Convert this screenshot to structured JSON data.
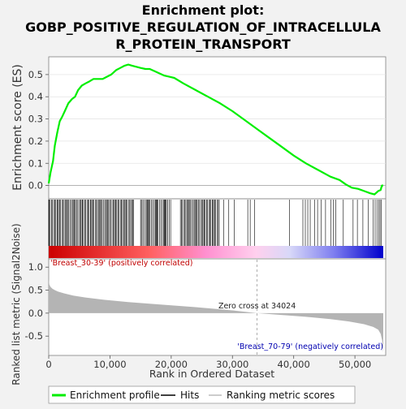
{
  "title_lines": [
    "Enrichment plot:",
    "GOBP_POSITIVE_REGULATION_OF_INTRACELLULA",
    "R_PROTEIN_TRANSPORT"
  ],
  "chart_data": {
    "type": "line",
    "x_max": 54627,
    "es_panel": {
      "ylabel": "Enrichment score (ES)",
      "ylim": [
        -0.06,
        0.58
      ],
      "yticks": [
        0.0,
        0.1,
        0.2,
        0.3,
        0.4,
        0.5
      ],
      "ytick_labels": [
        "0.0",
        "0.1",
        "0.2",
        "0.3",
        "0.4",
        "0.5"
      ],
      "series": [
        {
          "name": "Enrichment profile",
          "color": "#00ee00",
          "x": [
            0,
            300,
            700,
            1000,
            1400,
            1800,
            2200,
            2700,
            3200,
            3800,
            4300,
            4800,
            5400,
            6000,
            6700,
            7300,
            8000,
            8800,
            9500,
            10200,
            11000,
            11700,
            12400,
            13000,
            13600,
            14300,
            15000,
            15800,
            16500,
            17300,
            18100,
            18900,
            19700,
            20500,
            22000,
            24000,
            26000,
            28000,
            30000,
            32000,
            34000,
            36000,
            38000,
            40000,
            42000,
            44000,
            46000,
            47500,
            48500,
            49500,
            50500,
            51500,
            52500,
            53200,
            53800,
            54200,
            54400,
            54627
          ],
          "y": [
            0.01,
            0.06,
            0.11,
            0.18,
            0.24,
            0.29,
            0.31,
            0.34,
            0.37,
            0.39,
            0.4,
            0.43,
            0.45,
            0.46,
            0.47,
            0.48,
            0.48,
            0.48,
            0.49,
            0.5,
            0.52,
            0.53,
            0.54,
            0.545,
            0.54,
            0.535,
            0.53,
            0.525,
            0.525,
            0.515,
            0.505,
            0.495,
            0.49,
            0.485,
            0.46,
            0.43,
            0.4,
            0.37,
            0.335,
            0.295,
            0.255,
            0.215,
            0.175,
            0.135,
            0.1,
            0.07,
            0.04,
            0.025,
            0.005,
            -0.01,
            -0.015,
            -0.025,
            -0.035,
            -0.04,
            -0.025,
            -0.02,
            0.0,
            0.0
          ]
        }
      ]
    },
    "hits_panel": {
      "series_name": "Hits",
      "dense_ranges": [
        [
          0,
          14000
        ],
        [
          15000,
          20000
        ],
        [
          21500,
          28000
        ]
      ],
      "sparse_hits": [
        28600,
        29400,
        30300,
        32500,
        32900,
        33600,
        39300,
        41500,
        41900,
        42300,
        42700,
        43400,
        43900,
        44500,
        45200,
        46100,
        46500,
        46900,
        48100,
        49700,
        50400,
        51300,
        52200,
        53000,
        53300,
        53600,
        53900,
        54100,
        54300
      ]
    },
    "rank_panel": {
      "ylabel": "Ranked list metric (Signal2Noise)",
      "xlabel": "Rank in Ordered Dataset",
      "ylim": [
        -0.92,
        1.18
      ],
      "yticks": [
        -0.5,
        0.0,
        0.5,
        1.0
      ],
      "ytick_labels": [
        "-0.5",
        "0.0",
        "0.5",
        "1.0"
      ],
      "xticks": [
        0,
        10000,
        20000,
        30000,
        40000,
        50000
      ],
      "xtick_labels": [
        "0",
        "10,000",
        "20,000",
        "30,000",
        "40,000",
        "50,000"
      ],
      "metric_x": [
        0,
        100,
        300,
        600,
        1000,
        1500,
        2500,
        4000,
        6000,
        9000,
        13000,
        18000,
        24000,
        30000,
        34024,
        38000,
        42000,
        46000,
        49000,
        51500,
        53000,
        53800,
        54200,
        54450,
        54627
      ],
      "metric_y": [
        0.75,
        0.62,
        0.57,
        0.53,
        0.5,
        0.47,
        0.43,
        0.38,
        0.34,
        0.29,
        0.24,
        0.19,
        0.13,
        0.06,
        0.0,
        -0.04,
        -0.08,
        -0.13,
        -0.18,
        -0.24,
        -0.3,
        -0.36,
        -0.45,
        -0.6,
        -0.86
      ],
      "zero_cross": 34024,
      "zero_cross_label": "Zero cross at 34024",
      "pos_label": "'Breast_30-39' (positively correlated)",
      "neg_label": "'Breast_70-79' (negatively correlated)"
    },
    "legend": [
      {
        "label": "Enrichment profile",
        "color": "#00ee00"
      },
      {
        "label": "Hits",
        "color": "#000000"
      },
      {
        "label": "Ranking metric scores",
        "color": "#bbbbbb"
      }
    ]
  }
}
